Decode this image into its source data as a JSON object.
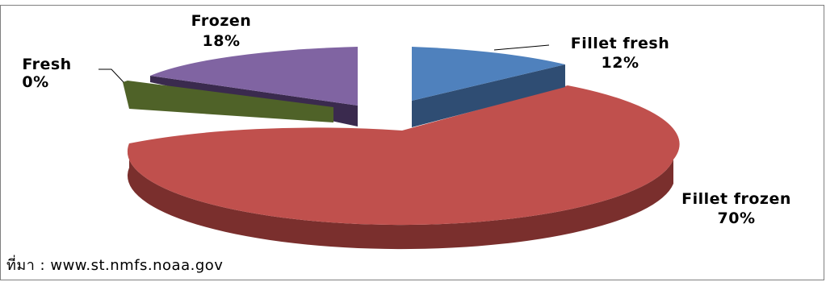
{
  "chart_data": {
    "type": "pie",
    "style": "3d-exploded",
    "categories": [
      "Fillet fresh",
      "Fillet frozen",
      "Fresh",
      "Frozen"
    ],
    "values": [
      12,
      70,
      0,
      18
    ],
    "labels": [
      {
        "name": "Fillet fresh",
        "pct": "12%"
      },
      {
        "name": "Fillet frozen",
        "pct": "70%"
      },
      {
        "name": "Fresh",
        "pct": "0%"
      },
      {
        "name": "Frozen",
        "pct": "18%"
      }
    ],
    "colors": {
      "fillet_fresh": "#4f81bd",
      "fillet_frozen": "#c0504d",
      "fresh": "#4f6228",
      "frozen": "#8064a2"
    }
  },
  "source": "ที่มา : www.st.nmfs.noaa.gov"
}
